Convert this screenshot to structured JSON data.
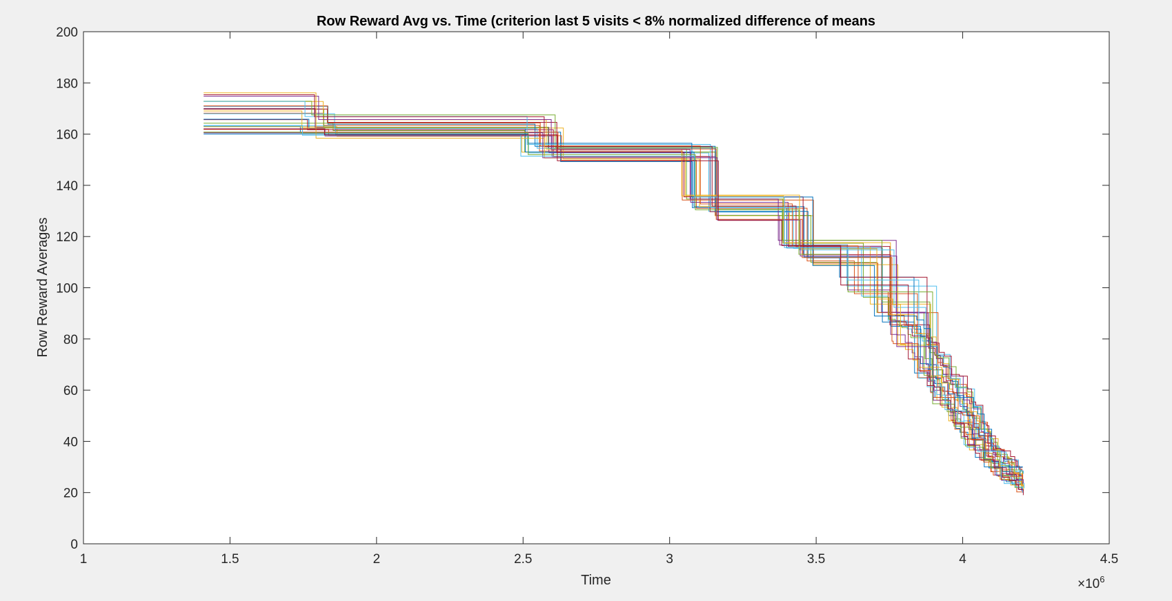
{
  "chart_data": {
    "type": "line",
    "title": "Row Reward Avg vs. Time (criterion last 5 visits < 8% normalized difference of means",
    "xlabel": "Time",
    "ylabel": "Row Reward Averages",
    "x_exponent_label": "×10",
    "x_exponent_power": "6",
    "xlim": [
      1,
      4.5
    ],
    "ylim": [
      0,
      200
    ],
    "x_ticks": [
      1,
      1.5,
      2,
      2.5,
      3,
      3.5,
      4,
      4.5
    ],
    "x_tick_labels": [
      "1",
      "1.5",
      "2",
      "2.5",
      "3",
      "3.5",
      "4",
      "4.5"
    ],
    "y_ticks": [
      0,
      20,
      40,
      60,
      80,
      100,
      120,
      140,
      160,
      180,
      200
    ],
    "y_tick_labels": [
      "0",
      "20",
      "40",
      "60",
      "80",
      "100",
      "120",
      "140",
      "160",
      "180",
      "200"
    ],
    "grid": false,
    "legend": "none",
    "series_count": 28,
    "x_unit_multiplier": 1000000,
    "colors": [
      "#0072BD",
      "#D95319",
      "#EDB120",
      "#7E2F8E",
      "#77AC30",
      "#4DBEEE",
      "#A2142F"
    ],
    "series_envelope": {
      "x": [
        1.41,
        1.88,
        2.6,
        3.1,
        3.45,
        3.7,
        3.85,
        4.0,
        4.1,
        4.2
      ],
      "y_min": [
        156,
        155,
        148,
        128,
        112,
        90,
        60,
        33,
        22,
        16
      ],
      "y_max": [
        181,
        168,
        157,
        136,
        116,
        98,
        95,
        70,
        45,
        32
      ]
    }
  }
}
